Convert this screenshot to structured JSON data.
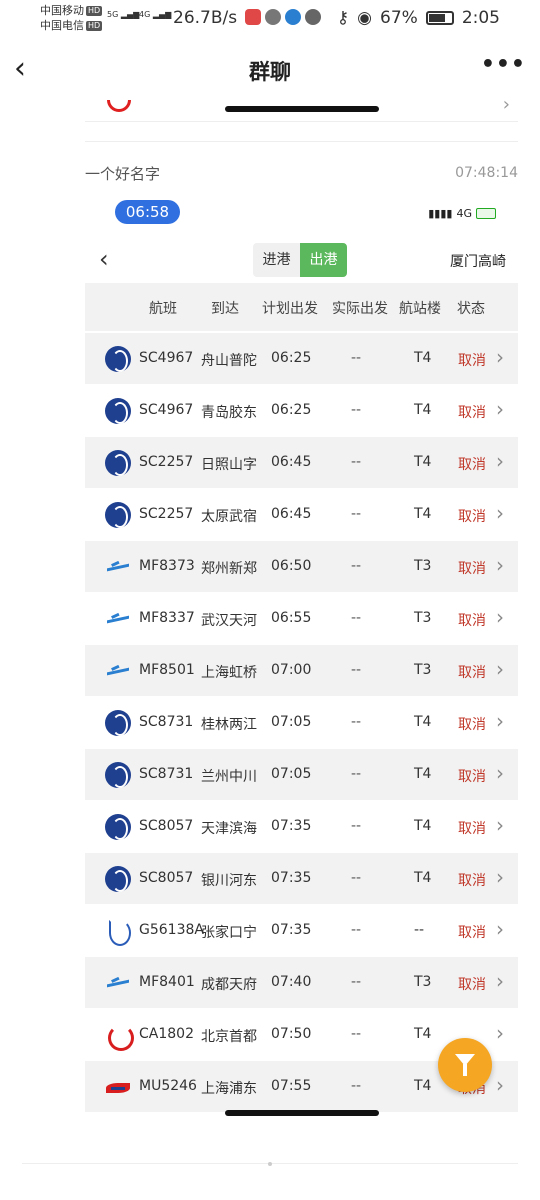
{
  "status_bar": {
    "carrier1": "中国移动",
    "carrier2": "中国电信",
    "hd": "HD",
    "sig1": "5G",
    "sig2": "4G",
    "net_speed": "26.7B/s",
    "battery_pct": "67%",
    "time": "2:05"
  },
  "header": {
    "title": "群聊",
    "back_icon": "‹",
    "more_icon": "•••"
  },
  "message": {
    "sender": "一个好名字",
    "time": "07:48:14"
  },
  "screenshot": {
    "clock": "06:58",
    "network": "4G",
    "tabs": {
      "arrival": "进港",
      "departure": "出港",
      "active": "departure"
    },
    "airport": "厦门高崎",
    "columns": [
      "航班",
      "到达",
      "计划出发",
      "实际出发",
      "航站楼",
      "状态"
    ],
    "flights": [
      {
        "airline": "sc",
        "flight": "SC4967",
        "dest": "舟山普陀",
        "planned": "06:25",
        "actual": "--",
        "terminal": "T4",
        "status": "取消"
      },
      {
        "airline": "sc",
        "flight": "SC4967",
        "dest": "青岛胶东",
        "planned": "06:25",
        "actual": "--",
        "terminal": "T4",
        "status": "取消"
      },
      {
        "airline": "sc",
        "flight": "SC2257",
        "dest": "日照山字",
        "planned": "06:45",
        "actual": "--",
        "terminal": "T4",
        "status": "取消"
      },
      {
        "airline": "sc",
        "flight": "SC2257",
        "dest": "太原武宿",
        "planned": "06:45",
        "actual": "--",
        "terminal": "T4",
        "status": "取消"
      },
      {
        "airline": "mf",
        "flight": "MF8373",
        "dest": "郑州新郑",
        "planned": "06:50",
        "actual": "--",
        "terminal": "T3",
        "status": "取消"
      },
      {
        "airline": "mf",
        "flight": "MF8337",
        "dest": "武汉天河",
        "planned": "06:55",
        "actual": "--",
        "terminal": "T3",
        "status": "取消"
      },
      {
        "airline": "mf",
        "flight": "MF8501",
        "dest": "上海虹桥",
        "planned": "07:00",
        "actual": "--",
        "terminal": "T3",
        "status": "取消"
      },
      {
        "airline": "sc",
        "flight": "SC8731",
        "dest": "桂林两江",
        "planned": "07:05",
        "actual": "--",
        "terminal": "T4",
        "status": "取消"
      },
      {
        "airline": "sc",
        "flight": "SC8731",
        "dest": "兰州中川",
        "planned": "07:05",
        "actual": "--",
        "terminal": "T4",
        "status": "取消"
      },
      {
        "airline": "sc",
        "flight": "SC8057",
        "dest": "天津滨海",
        "planned": "07:35",
        "actual": "--",
        "terminal": "T4",
        "status": "取消"
      },
      {
        "airline": "sc",
        "flight": "SC8057",
        "dest": "银川河东",
        "planned": "07:35",
        "actual": "--",
        "terminal": "T4",
        "status": "取消"
      },
      {
        "airline": "g5",
        "flight": "G56138A",
        "dest": "张家口宁",
        "planned": "07:35",
        "actual": "--",
        "terminal": "--",
        "status": "取消"
      },
      {
        "airline": "mf",
        "flight": "MF8401",
        "dest": "成都天府",
        "planned": "07:40",
        "actual": "--",
        "terminal": "T3",
        "status": "取消"
      },
      {
        "airline": "ca",
        "flight": "CA1802",
        "dest": "北京首都",
        "planned": "07:50",
        "actual": "--",
        "terminal": "T4",
        "status": ""
      },
      {
        "airline": "mu",
        "flight": "MU5246",
        "dest": "上海浦东",
        "planned": "07:55",
        "actual": "--",
        "terminal": "T4",
        "status": "取消"
      }
    ]
  }
}
